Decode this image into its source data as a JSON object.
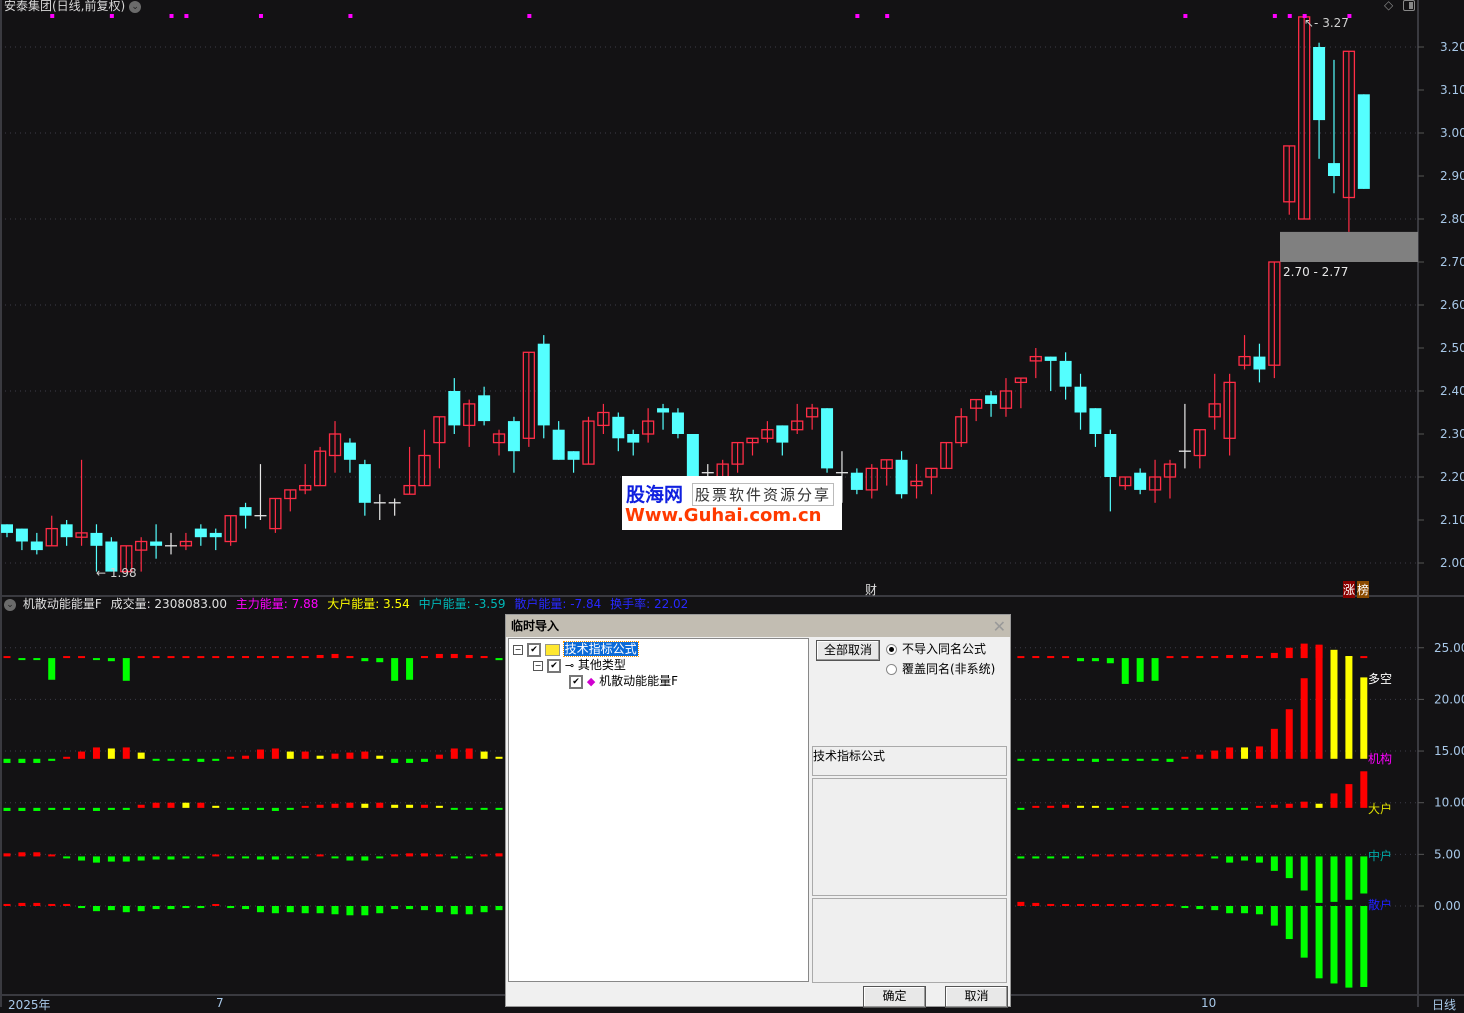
{
  "header": {
    "title": "安泰集团(日线,前复权)",
    "dropdown_icon": "chevron-down-icon"
  },
  "toolbar_icons": [
    "diamond-icon",
    "panel-toggle-icon"
  ],
  "colors": {
    "up": "#ff2d46",
    "down": "#54ffff",
    "doji": "#e6e6e6",
    "bar_red": "#ff0000",
    "bar_green": "#00ff00",
    "bar_yellow": "#ffff00",
    "marker": "#ff00ff"
  },
  "price_axis": {
    "ticks": [
      "3.20",
      "3.10",
      "3.00",
      "2.90",
      "2.80",
      "2.70",
      "2.60",
      "2.50",
      "2.40",
      "2.30",
      "2.20",
      "2.10",
      "2.00"
    ],
    "range": [
      2.0,
      3.2
    ]
  },
  "candles": [
    [
      2.09,
      2.09,
      2.06,
      2.07
    ],
    [
      2.08,
      2.08,
      2.03,
      2.05
    ],
    [
      2.05,
      2.07,
      2.02,
      2.03
    ],
    [
      2.04,
      2.11,
      2.04,
      2.08
    ],
    [
      2.09,
      2.1,
      2.04,
      2.06
    ],
    [
      2.06,
      2.24,
      2.04,
      2.07
    ],
    [
      2.07,
      2.09,
      1.98,
      2.04
    ],
    [
      2.05,
      2.06,
      1.98,
      1.98
    ],
    [
      1.98,
      2.04,
      1.98,
      2.04
    ],
    [
      2.03,
      2.06,
      1.98,
      2.05
    ],
    [
      2.05,
      2.09,
      2.01,
      2.04
    ],
    [
      2.04,
      2.07,
      2.02,
      2.04
    ],
    [
      2.04,
      2.07,
      2.03,
      2.05
    ],
    [
      2.08,
      2.09,
      2.04,
      2.06
    ],
    [
      2.07,
      2.08,
      2.03,
      2.06
    ],
    [
      2.05,
      2.11,
      2.04,
      2.11
    ],
    [
      2.13,
      2.14,
      2.08,
      2.11
    ],
    [
      2.11,
      2.23,
      2.1,
      2.11
    ],
    [
      2.08,
      2.15,
      2.07,
      2.15
    ],
    [
      2.15,
      2.17,
      2.12,
      2.17
    ],
    [
      2.17,
      2.23,
      2.16,
      2.18
    ],
    [
      2.18,
      2.27,
      2.18,
      2.26
    ],
    [
      2.25,
      2.33,
      2.21,
      2.3
    ],
    [
      2.28,
      2.29,
      2.21,
      2.24
    ],
    [
      2.23,
      2.24,
      2.11,
      2.14
    ],
    [
      2.14,
      2.16,
      2.1,
      2.14
    ],
    [
      2.14,
      2.15,
      2.11,
      2.14
    ],
    [
      2.16,
      2.27,
      2.16,
      2.18
    ],
    [
      2.18,
      2.31,
      2.18,
      2.25
    ],
    [
      2.28,
      2.34,
      2.22,
      2.34
    ],
    [
      2.4,
      2.43,
      2.3,
      2.32
    ],
    [
      2.32,
      2.38,
      2.27,
      2.37
    ],
    [
      2.39,
      2.41,
      2.32,
      2.33
    ],
    [
      2.28,
      2.31,
      2.25,
      2.3
    ],
    [
      2.33,
      2.34,
      2.21,
      2.26
    ],
    [
      2.29,
      2.49,
      2.27,
      2.49
    ],
    [
      2.51,
      2.53,
      2.29,
      2.32
    ],
    [
      2.31,
      2.33,
      2.24,
      2.24
    ],
    [
      2.26,
      2.26,
      2.21,
      2.24
    ],
    [
      2.23,
      2.34,
      2.23,
      2.33
    ],
    [
      2.32,
      2.37,
      2.3,
      2.35
    ],
    [
      2.34,
      2.35,
      2.26,
      2.29
    ],
    [
      2.3,
      2.31,
      2.25,
      2.28
    ],
    [
      2.3,
      2.36,
      2.28,
      2.33
    ],
    [
      2.36,
      2.37,
      2.31,
      2.35
    ],
    [
      2.35,
      2.36,
      2.29,
      2.3
    ],
    [
      2.3,
      2.3,
      2.19,
      2.2
    ],
    [
      2.21,
      2.23,
      2.17,
      2.21
    ],
    [
      2.2,
      2.24,
      2.19,
      2.23
    ],
    [
      2.23,
      2.28,
      2.21,
      2.28
    ],
    [
      2.28,
      2.29,
      2.25,
      2.29
    ],
    [
      2.29,
      2.33,
      2.28,
      2.31
    ],
    [
      2.32,
      2.32,
      2.25,
      2.28
    ],
    [
      2.31,
      2.37,
      2.3,
      2.33
    ],
    [
      2.34,
      2.37,
      2.31,
      2.36
    ],
    [
      2.36,
      2.36,
      2.21,
      2.22
    ],
    [
      2.21,
      2.26,
      2.14,
      2.21
    ],
    [
      2.21,
      2.22,
      2.16,
      2.17
    ],
    [
      2.17,
      2.23,
      2.15,
      2.22
    ],
    [
      2.22,
      2.24,
      2.18,
      2.24
    ],
    [
      2.24,
      2.26,
      2.15,
      2.16
    ],
    [
      2.18,
      2.23,
      2.15,
      2.19
    ],
    [
      2.2,
      2.22,
      2.16,
      2.22
    ],
    [
      2.22,
      2.28,
      2.22,
      2.28
    ],
    [
      2.28,
      2.36,
      2.27,
      2.34
    ],
    [
      2.36,
      2.38,
      2.33,
      2.38
    ],
    [
      2.39,
      2.4,
      2.34,
      2.37
    ],
    [
      2.36,
      2.43,
      2.34,
      2.4
    ],
    [
      2.42,
      2.43,
      2.36,
      2.43
    ],
    [
      2.47,
      2.5,
      2.43,
      2.48
    ],
    [
      2.48,
      2.48,
      2.4,
      2.47
    ],
    [
      2.47,
      2.49,
      2.38,
      2.41
    ],
    [
      2.41,
      2.44,
      2.31,
      2.35
    ],
    [
      2.36,
      2.36,
      2.27,
      2.3
    ],
    [
      2.3,
      2.31,
      2.12,
      2.2
    ],
    [
      2.18,
      2.2,
      2.17,
      2.2
    ],
    [
      2.21,
      2.22,
      2.16,
      2.17
    ],
    [
      2.17,
      2.24,
      2.14,
      2.2
    ],
    [
      2.2,
      2.24,
      2.15,
      2.23
    ],
    [
      2.26,
      2.37,
      2.22,
      2.26
    ],
    [
      2.25,
      2.31,
      2.22,
      2.31
    ],
    [
      2.34,
      2.44,
      2.31,
      2.37
    ],
    [
      2.29,
      2.44,
      2.25,
      2.42
    ],
    [
      2.46,
      2.53,
      2.45,
      2.48
    ],
    [
      2.48,
      2.51,
      2.42,
      2.45
    ],
    [
      2.46,
      2.7,
      2.43,
      2.7
    ],
    [
      2.84,
      2.97,
      2.81,
      2.97
    ],
    [
      2.8,
      3.27,
      2.8,
      3.27
    ],
    [
      3.2,
      3.21,
      2.94,
      3.03
    ],
    [
      2.93,
      3.17,
      2.86,
      2.9
    ],
    [
      2.85,
      3.19,
      2.77,
      3.19
    ],
    [
      3.09,
      3.09,
      2.87,
      2.87
    ]
  ],
  "event_markers": [
    3,
    7,
    11,
    12,
    17,
    23,
    35,
    57,
    59,
    79,
    85,
    86,
    87,
    90
  ],
  "annotations": {
    "low_label": "1.98",
    "high_label": "3.27",
    "gap_label": "2.70 - 2.77",
    "gap_range": [
      2.7,
      2.77
    ],
    "cai_marker": "财",
    "zhang_marker": "涨",
    "bang_marker": "榜"
  },
  "indicator": {
    "name": "机散动能能量F",
    "volume": "成交量: 2308083.00",
    "main": "主力能量: 7.88",
    "big": "大户能量: 3.54",
    "mid": "中户能量: -3.59",
    "retail": "散户能量: -7.84",
    "turnover": "换手率: 22.02",
    "axis_ticks": [
      "25.00",
      "20.00",
      "15.00",
      "10.00",
      "5.00",
      "0.00"
    ],
    "row_labels": {
      "duokong": "多空",
      "jigou": "机构",
      "dahu": "大户",
      "zhonghu": "中户",
      "sanhu": "散户"
    },
    "rows": [
      {
        "key": "duokong",
        "baseline": 24.0,
        "values": [
          0.1,
          -0.1,
          -0.1,
          -2.1,
          0.1,
          0.1,
          -0.1,
          -0.3,
          -2.2,
          0.1,
          0.1,
          0.1,
          0.1,
          0.1,
          0.1,
          0.2,
          0.2,
          0.2,
          0.2,
          0.2,
          0.2,
          0.3,
          0.4,
          0.2,
          -0.3,
          -0.4,
          -2.2,
          -2.1,
          0.2,
          0.4,
          0.4,
          0.3,
          0.2,
          -0.2,
          null,
          null,
          null,
          null,
          null,
          null,
          null,
          null,
          null,
          null,
          null,
          null,
          null,
          null,
          null,
          null,
          null,
          null,
          null,
          null,
          null,
          null,
          null,
          null,
          null,
          null,
          null,
          null,
          null,
          null,
          null,
          null,
          null,
          null,
          0.1,
          0.2,
          0.2,
          0.05,
          -0.3,
          -0.3,
          -0.5,
          -2.5,
          -2.3,
          -2.2,
          0.05,
          0.1,
          0.2,
          0.2,
          0.3,
          0.3,
          0.2,
          0.5,
          1.0,
          1.4,
          1.3,
          0.8,
          0.2,
          0.1
        ],
        "colors": "rgggrrgggrrrrrrrrrrrrrrrggggrrrrrg----------------------------------rrrrggggggrrrrrrrrrrryyr"
      },
      {
        "key": "jigou",
        "baseline": 14.25,
        "values": [
          -0.4,
          -0.4,
          -0.4,
          -0.2,
          0.1,
          0.7,
          1.1,
          1.0,
          1.1,
          0.6,
          -0.05,
          -0.05,
          -0.2,
          -0.3,
          -0.2,
          0.2,
          0.3,
          0.9,
          1.0,
          0.7,
          0.7,
          0.3,
          0.5,
          0.6,
          0.7,
          0.3,
          -0.4,
          -0.4,
          -0.3,
          0.4,
          1.0,
          1.0,
          0.7,
          0.1,
          null,
          null,
          null,
          null,
          null,
          null,
          null,
          null,
          null,
          null,
          null,
          null,
          null,
          null,
          null,
          null,
          null,
          null,
          null,
          null,
          null,
          null,
          null,
          null,
          null,
          null,
          null,
          null,
          null,
          null,
          null,
          null,
          null,
          null,
          -0.1,
          -0.2,
          -0.1,
          -0.2,
          -0.2,
          -0.3,
          -0.1,
          -0.2,
          -0.2,
          -0.1,
          -0.3,
          0.1,
          0.4,
          0.8,
          1.1,
          1.1,
          1.2,
          2.9,
          4.8,
          7.8,
          11.0,
          10.5,
          9.9,
          7.88
        ],
        "colors": "ggggrrryryggggg rrrryryrrryggg rrryy----------------------------------gggggggggggrrrryrrrrryyy"
      },
      {
        "key": "dahu",
        "baseline": 9.5,
        "values": [
          -0.3,
          -0.3,
          -0.3,
          -0.2,
          -0.2,
          -0.2,
          -0.3,
          -0.2,
          -0.2,
          0.3,
          0.5,
          0.5,
          0.5,
          0.5,
          0.2,
          -0.05,
          -0.05,
          -0.2,
          -0.3,
          -0.05,
          0.05,
          0.3,
          0.4,
          0.5,
          0.4,
          0.5,
          0.3,
          0.3,
          0.3,
          0.2,
          -0.05,
          -0.1,
          -0.1,
          -0.05,
          null,
          null,
          null,
          null,
          null,
          null,
          null,
          null,
          null,
          null,
          null,
          null,
          null,
          null,
          null,
          null,
          null,
          null,
          null,
          null,
          null,
          null,
          null,
          null,
          null,
          null,
          null,
          null,
          null,
          null,
          null,
          null,
          null,
          null,
          -0.1,
          0.1,
          0.2,
          0.3,
          0.2,
          0.1,
          -0.05,
          0.05,
          -0.05,
          -0.1,
          -0.1,
          -0.1,
          -0.1,
          -0.1,
          -0.05,
          -0.05,
          0.1,
          0.3,
          0.4,
          0.6,
          0.4,
          1.4,
          2.3,
          3.54
        ],
        "colors": "gggggggggrrryrygggggrrrryryyrygggg----------------------------------grrryygrggggggggrrrryrrr"
      },
      {
        "key": "zhonghu",
        "baseline": 4.8,
        "values": [
          0.3,
          0.4,
          0.4,
          0.1,
          -0.1,
          -0.4,
          -0.6,
          -0.5,
          -0.5,
          -0.4,
          -0.3,
          -0.3,
          -0.2,
          -0.1,
          0.05,
          -0.1,
          -0.1,
          -0.3,
          -0.3,
          -0.2,
          -0.1,
          0.05,
          -0.1,
          -0.4,
          -0.4,
          -0.1,
          0.2,
          0.3,
          0.3,
          0.05,
          -0.1,
          -0.1,
          0.05,
          0.3,
          null,
          null,
          null,
          null,
          null,
          null,
          null,
          null,
          null,
          null,
          null,
          null,
          null,
          null,
          null,
          null,
          null,
          null,
          null,
          null,
          null,
          null,
          null,
          null,
          null,
          null,
          null,
          null,
          null,
          null,
          null,
          null,
          null,
          null,
          -0.2,
          -0.2,
          -0.1,
          -0.1,
          -0.1,
          0.05,
          0.05,
          0.1,
          0.1,
          0.1,
          0.2,
          0.1,
          0.05,
          -0.2,
          -0.6,
          -0.4,
          -0.6,
          -1.4,
          -2.1,
          -3.3,
          -4.5,
          -4.4,
          -4.2,
          -3.59
        ],
        "colors": "rrrrggggggggggrggggggrggggrrrrggrr----------------------------------gggggrrrrrrrrggggggggggg"
      },
      {
        "key": "sanhu",
        "baseline": 0.0,
        "values": [
          0.2,
          0.3,
          0.3,
          0.2,
          0.2,
          -0.2,
          -0.5,
          -0.4,
          -0.6,
          -0.5,
          -0.3,
          -0.3,
          -0.2,
          -0.2,
          0.05,
          -0.2,
          -0.3,
          -0.6,
          -0.7,
          -0.6,
          -0.7,
          -0.7,
          -0.8,
          -0.9,
          -0.9,
          -0.7,
          -0.3,
          -0.3,
          -0.4,
          -0.6,
          -0.8,
          -0.8,
          -0.6,
          -0.4,
          null,
          null,
          null,
          null,
          null,
          null,
          null,
          null,
          null,
          null,
          null,
          null,
          null,
          null,
          null,
          null,
          null,
          null,
          null,
          null,
          null,
          null,
          null,
          null,
          null,
          null,
          null,
          null,
          null,
          null,
          null,
          null,
          null,
          null,
          0.4,
          0.3,
          0.2,
          0.05,
          0.05,
          0.2,
          0.05,
          0.1,
          0.1,
          0.05,
          0.2,
          -0.2,
          -0.3,
          -0.4,
          -0.7,
          -0.7,
          -0.8,
          -1.9,
          -3.2,
          -5.0,
          -7.0,
          -7.5,
          -7.9,
          -7.84
        ],
        "colors": "rrrrrgggggggggrggggggggggggggggggg----------------------------------rrrrrrrrrrrggggggggggggg"
      }
    ]
  },
  "time_axis": {
    "year": "2025年",
    "m7": "7",
    "m10": "10",
    "period": "日线"
  },
  "watermark": {
    "brand": "股海网",
    "slogan": "股票软件资源分享",
    "url": "Www.Guhai.com.cn"
  },
  "dialog": {
    "title": "临时导入",
    "tree": [
      {
        "label": "技术指标公式",
        "checked": true,
        "icon": "folder-icon"
      },
      {
        "label": "其他类型",
        "checked": true,
        "icon": "key-icon"
      },
      {
        "label": "机散动能能量F",
        "checked": true,
        "icon": "formula-gem-icon"
      }
    ],
    "cancel_all": "全部取消",
    "options": [
      {
        "label": "不导入同名公式",
        "selected": true
      },
      {
        "label": "覆盖同名(非系统)",
        "selected": false
      }
    ],
    "info_label": "技术指标公式",
    "ok": "确定",
    "cancel": "取消"
  }
}
